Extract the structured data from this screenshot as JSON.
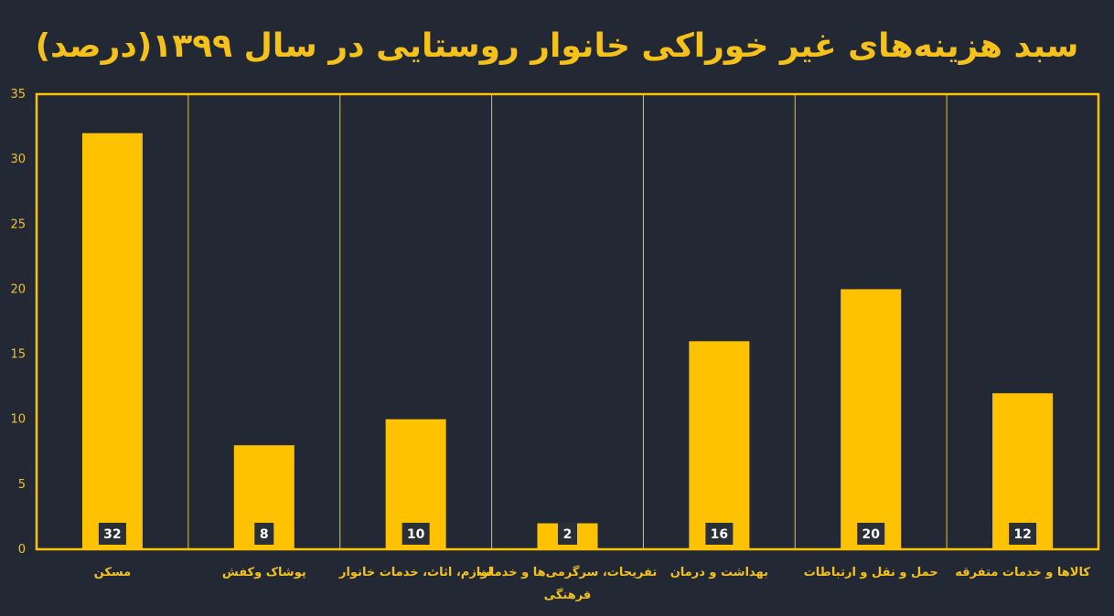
{
  "chart_data": {
    "type": "bar",
    "title": "سبد هزینه‌های غیر خوراکی خانوار روستایی در سال ۱۳۹۹(درصد)",
    "categories": [
      "مسکن",
      "پوشاک وکفش",
      "لوازم، اثاث، خدمات خانوار",
      "تفریحات، سرگرمی‌ها و خدمات فرهنگی",
      "بهداشت و درمان",
      "حمل و نقل و ارتباطات",
      "کالاها و خدمات متفرقه"
    ],
    "values": [
      32,
      8,
      10,
      2,
      16,
      20,
      12
    ],
    "xlabel": "",
    "ylabel": "",
    "ylim": [
      0,
      35
    ],
    "yticks": [
      0,
      5,
      10,
      15,
      20,
      25,
      30,
      35
    ],
    "grid": false,
    "legend": "none"
  },
  "colors": {
    "background": "#222934",
    "bar": "#FFC200",
    "text": "#F6C21A",
    "label_box": "#2B2F36",
    "label_text": "#FFFFFF"
  }
}
